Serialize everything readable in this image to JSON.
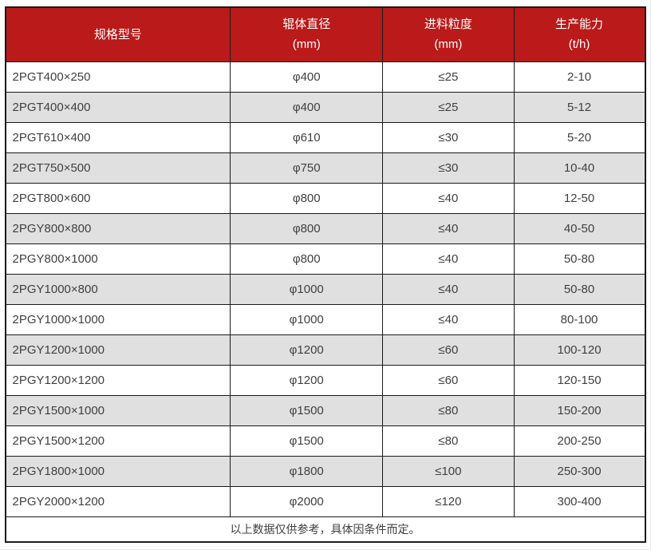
{
  "colors": {
    "header_bg": "#ba1a1a",
    "header_text": "#ffffff",
    "row_alt_bg": "#e0e0e0",
    "row_bg": "#ffffff",
    "border": "#1a1a1a",
    "text": "#404040"
  },
  "chart_data": {
    "type": "table",
    "title": "",
    "columns": [
      {
        "label": "规格型号",
        "unit": ""
      },
      {
        "label": "辊体直径",
        "unit": "(mm)"
      },
      {
        "label": "进料粒度",
        "unit": "(mm)"
      },
      {
        "label": "生产能力",
        "unit": "(t/h)"
      }
    ],
    "rows": [
      [
        "2PGT400×250",
        "φ400",
        "≤25",
        "2-10"
      ],
      [
        "2PGT400×400",
        "φ400",
        "≤25",
        "5-12"
      ],
      [
        "2PGT610×400",
        "φ610",
        "≤30",
        "5-20"
      ],
      [
        "2PGT750×500",
        "φ750",
        "≤30",
        "10-40"
      ],
      [
        "2PGT800×600",
        "φ800",
        "≤40",
        "12-50"
      ],
      [
        "2PGY800×800",
        "φ800",
        "≤40",
        "40-50"
      ],
      [
        "2PGY800×1000",
        "φ800",
        "≤40",
        "50-80"
      ],
      [
        "2PGY1000×800",
        "φ1000",
        "≤40",
        "50-80"
      ],
      [
        "2PGY1000×1000",
        "φ1000",
        "≤40",
        "80-100"
      ],
      [
        "2PGY1200×1000",
        "φ1200",
        "≤60",
        "100-120"
      ],
      [
        "2PGY1200×1200",
        "φ1200",
        "≤60",
        "120-150"
      ],
      [
        "2PGY1500×1000",
        "φ1500",
        "≤80",
        "150-200"
      ],
      [
        "2PGY1500×1200",
        "φ1500",
        "≤80",
        "200-250"
      ],
      [
        "2PGY1800×1000",
        "φ1800",
        "≤100",
        "250-300"
      ],
      [
        "2PGY2000×1200",
        "φ2000",
        "≤120",
        "300-400"
      ]
    ],
    "footnote": "以上数据仅供参考，具体因条件而定。",
    "layout": {
      "striped": true,
      "first_column_align": "left",
      "other_columns_align": "center"
    }
  }
}
